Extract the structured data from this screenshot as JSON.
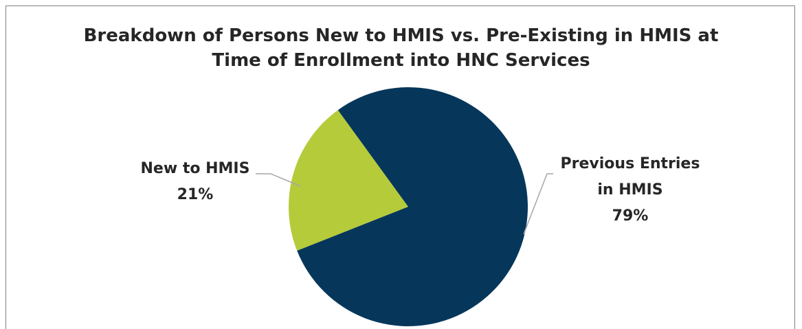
{
  "chart_data": {
    "type": "pie",
    "title_lines": [
      "Breakdown of Persons New to HMIS vs. Pre-Existing in HMIS at",
      "Time of Enrollment into HNC Services"
    ],
    "slices": [
      {
        "label_lines": [
          "New to HMIS"
        ],
        "pct_text": "21%",
        "value": 21,
        "color": "#b5cb3a"
      },
      {
        "label_lines": [
          "Previous Entries",
          "in HMIS"
        ],
        "pct_text": "79%",
        "value": 79,
        "color": "#06375b"
      }
    ]
  }
}
